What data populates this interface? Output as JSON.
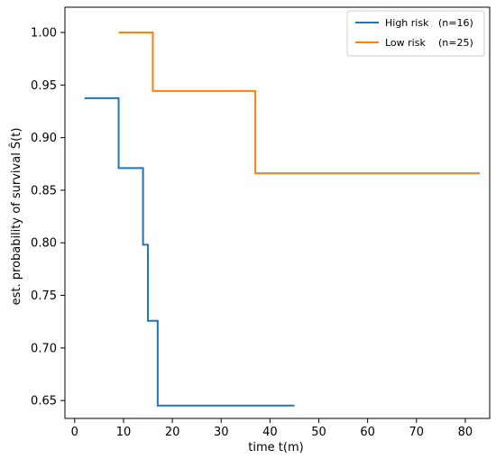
{
  "chart_data": {
    "type": "line",
    "step": "post",
    "xlabel": "time t(m)",
    "ylabel": "est. probability of survival Ŝ(t)",
    "xlim": [
      -2,
      85
    ],
    "ylim": [
      0.633,
      1.024
    ],
    "xticks": [
      0,
      10,
      20,
      30,
      40,
      50,
      60,
      70,
      80
    ],
    "xtick_labels": [
      "0",
      "10",
      "20",
      "30",
      "40",
      "50",
      "60",
      "70",
      "80"
    ],
    "yticks": [
      0.65,
      0.7,
      0.75,
      0.8,
      0.85,
      0.9,
      0.95,
      1.0
    ],
    "ytick_labels": [
      "0.65",
      "0.70",
      "0.75",
      "0.80",
      "0.85",
      "0.90",
      "0.95",
      "1.00"
    ],
    "grid": false,
    "legend_position": "top-right",
    "series": [
      {
        "name": "High risk",
        "n_label": "(n=16)",
        "color": "#1f77b4",
        "x": [
          2,
          9,
          14,
          15,
          17,
          45
        ],
        "y": [
          0.9375,
          0.8711,
          0.7982,
          0.7258,
          0.6452,
          0.6452
        ]
      },
      {
        "name": "Low risk",
        "n_label": "(n=25)",
        "color": "#ff7f0e",
        "x": [
          9,
          16,
          37,
          83
        ],
        "y": [
          1.0,
          0.9444,
          0.8661,
          0.8661
        ]
      }
    ]
  }
}
